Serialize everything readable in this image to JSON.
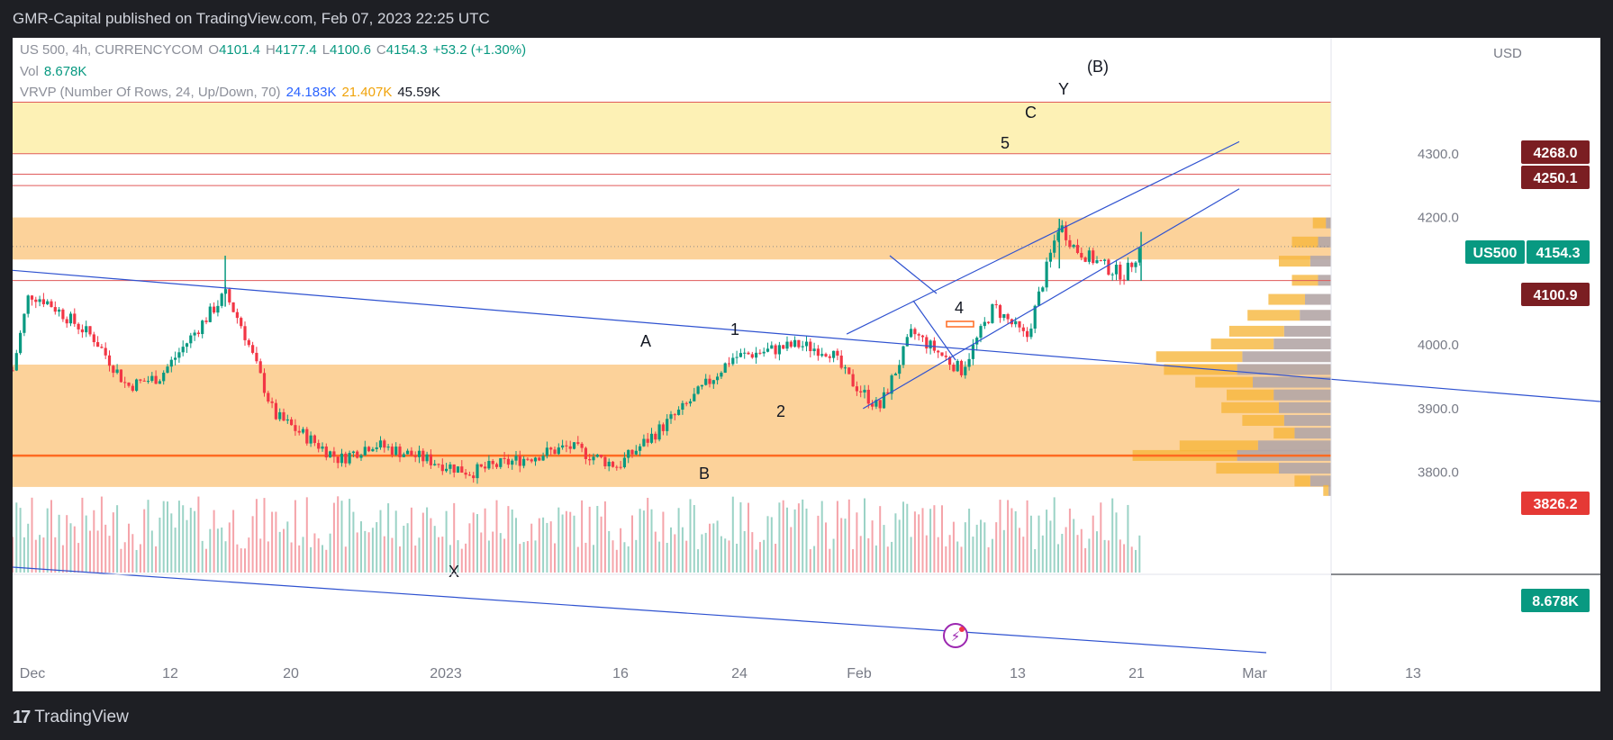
{
  "header": {
    "publisher_line": "GMR-Capital published on TradingView.com, Feb 07, 2023 22:25 UTC"
  },
  "legend": {
    "symbol": "US 500, 4h, CURRENCYCOM",
    "open_label": "O",
    "open": "4101.4",
    "high_label": "H",
    "high": "4177.4",
    "low_label": "L",
    "low": "4100.6",
    "close_label": "C",
    "close": "4154.3",
    "change": "+53.2 (+1.30%)",
    "vol_label": "Vol",
    "vol_value": "8.678K",
    "vrvp_label": "VRVP (Number Of Rows, 24, Up/Down, 70)",
    "vrvp_up": "24.183K",
    "vrvp_down": "21.407K",
    "vrvp_total": "45.59K"
  },
  "price_axis": {
    "currency": "USD",
    "ticks": [
      "4300.0",
      "4200.0",
      "4000.0",
      "3900.0",
      "3800.0"
    ],
    "badges": {
      "r4268": "4268.0",
      "r4250": "4250.1",
      "symbol_tag": "US500",
      "last_price": "4154.3",
      "r4100": "4100.9",
      "r3826": "3826.2",
      "volume": "8.678K"
    }
  },
  "time_axis": {
    "ticks": [
      "Dec",
      "12",
      "20",
      "2023",
      "16",
      "24",
      "Feb",
      "13",
      "21",
      "Mar",
      "13"
    ]
  },
  "wave_labels": {
    "A": "A",
    "B": "B",
    "one": "1",
    "two": "2",
    "four": "4",
    "five": "5",
    "C": "C",
    "Y": "Y",
    "Bparen": "(B)",
    "X": "X"
  },
  "footer": {
    "brand": "TradingView"
  },
  "colors": {
    "up": "#089981",
    "down": "#f23645",
    "zone_orange": "#fcd29a",
    "zone_yellow": "#fdf1b5",
    "trendline": "#2f52d0",
    "level_line": "#e05a5a",
    "support_line": "#ff6a21",
    "badge_dark_red": "#7b1e22",
    "badge_red": "#e53935",
    "badge_green": "#089981"
  },
  "chart_data": {
    "type": "candlestick",
    "symbol": "US 500",
    "interval": "4h",
    "exchange": "CURRENCYCOM",
    "ylim": [
      3770,
      4390
    ],
    "last": {
      "open": 4101.4,
      "high": 4177.4,
      "low": 4100.6,
      "close": 4154.3,
      "change": 53.2,
      "change_pct": 1.3
    },
    "price_path": [
      {
        "date": "2022-11-30",
        "price": 3960
      },
      {
        "date": "2022-12-01",
        "price": 4080
      },
      {
        "date": "2022-12-02",
        "price": 4070
      },
      {
        "date": "2022-12-05",
        "price": 4010
      },
      {
        "date": "2022-12-07",
        "price": 3935
      },
      {
        "date": "2022-12-09",
        "price": 3950
      },
      {
        "date": "2022-12-13",
        "price": 4080
      },
      {
        "date": "2022-12-14",
        "price": 4030
      },
      {
        "date": "2022-12-16",
        "price": 3890
      },
      {
        "date": "2022-12-20",
        "price": 3820
      },
      {
        "date": "2022-12-22",
        "price": 3845
      },
      {
        "date": "2022-12-28",
        "price": 3800
      },
      {
        "date": "2023-01-03",
        "price": 3840
      },
      {
        "date": "2023-01-06",
        "price": 3810
      },
      {
        "date": "2023-01-10",
        "price": 3900
      },
      {
        "date": "2023-01-13",
        "price": 3980
      },
      {
        "date": "2023-01-17",
        "price": 4000
      },
      {
        "date": "2023-01-19",
        "price": 3990
      },
      {
        "date": "2023-01-20",
        "price": 3950
      },
      {
        "date": "2023-01-22",
        "price": 3900
      },
      {
        "date": "2023-01-24",
        "price": 4020
      },
      {
        "date": "2023-01-27",
        "price": 3960
      },
      {
        "date": "2023-01-29",
        "price": 4060
      },
      {
        "date": "2023-01-31",
        "price": 4010
      },
      {
        "date": "2023-02-02",
        "price": 4190
      },
      {
        "date": "2023-02-03",
        "price": 4150
      },
      {
        "date": "2023-02-05",
        "price": 4120
      },
      {
        "date": "2023-02-06",
        "price": 4110
      },
      {
        "date": "2023-02-07",
        "price": 4154.3
      }
    ],
    "spikes": [
      {
        "date": "2022-12-13",
        "high": 4140,
        "low": 4060
      },
      {
        "date": "2023-02-02",
        "high": 4198,
        "low": 4120
      },
      {
        "date": "2023-02-07",
        "high": 4177.4,
        "low": 4100.6
      }
    ],
    "horizontal_levels": [
      4381,
      4300,
      4268,
      4250.1,
      4100.9,
      3826.2
    ],
    "zones": [
      {
        "from": 4300,
        "to": 4381,
        "color": "yellow"
      },
      {
        "from": 4134,
        "to": 4200,
        "color": "orange"
      },
      {
        "from": 3777,
        "to": 3969,
        "color": "orange"
      }
    ],
    "trendlines": [
      {
        "from": {
          "date": "2022-11-30",
          "price": 4117
        },
        "to": {
          "date": "2023-03-17",
          "price": 3890
        }
      },
      {
        "from": {
          "date": "2023-01-20",
          "price": 4017
        },
        "to": {
          "date": "2023-02-13",
          "price": 4319
        }
      },
      {
        "from": {
          "date": "2023-01-21",
          "price": 3900
        },
        "to": {
          "date": "2023-02-13",
          "price": 4245
        }
      }
    ],
    "volume_profile": [
      {
        "price": 4190,
        "up": 0.05,
        "down": 0.02
      },
      {
        "price": 4160,
        "up": 0.1,
        "down": 0.05
      },
      {
        "price": 4130,
        "up": 0.12,
        "down": 0.08
      },
      {
        "price": 4100,
        "up": 0.1,
        "down": 0.05
      },
      {
        "price": 4070,
        "up": 0.14,
        "down": 0.1
      },
      {
        "price": 4045,
        "up": 0.2,
        "down": 0.12
      },
      {
        "price": 4020,
        "up": 0.21,
        "down": 0.18
      },
      {
        "price": 4000,
        "up": 0.24,
        "down": 0.22
      },
      {
        "price": 3980,
        "up": 0.33,
        "down": 0.34
      },
      {
        "price": 3960,
        "up": 0.28,
        "down": 0.36
      },
      {
        "price": 3940,
        "up": 0.22,
        "down": 0.3
      },
      {
        "price": 3920,
        "up": 0.18,
        "down": 0.22
      },
      {
        "price": 3900,
        "up": 0.22,
        "down": 0.2
      },
      {
        "price": 3880,
        "up": 0.16,
        "down": 0.18
      },
      {
        "price": 3860,
        "up": 0.08,
        "down": 0.14
      },
      {
        "price": 3840,
        "up": 0.3,
        "down": 0.28
      },
      {
        "price": 3825,
        "up": 0.4,
        "down": 0.36
      },
      {
        "price": 3805,
        "up": 0.24,
        "down": 0.2
      },
      {
        "price": 3785,
        "up": 0.06,
        "down": 0.08
      },
      {
        "price": 3770,
        "up": 0.02,
        "down": 0.01
      }
    ]
  }
}
